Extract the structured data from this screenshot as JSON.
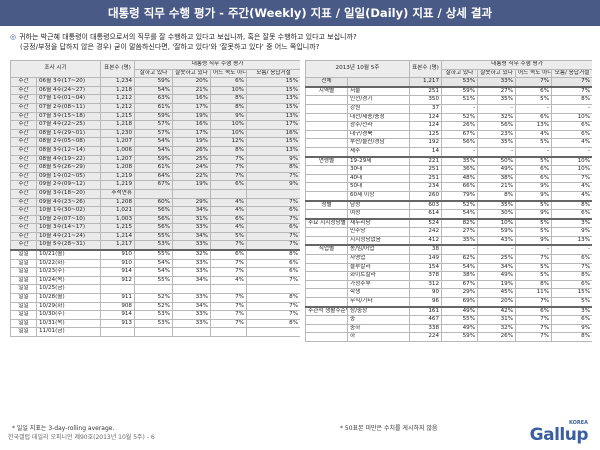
{
  "title": "대통령 직무 수행 평가 - 주간(Weekly) 지표 / 일일(Daily) 지표 / 상세 결과",
  "question": {
    "line1": "귀하는 박근혜 대통령이 대통령으로서의 직무를 잘 수행하고 있다고 보십니까, 혹은 잘못 수행하고 있다고 보십니까?",
    "line2": "(긍정/부정을 답하지 않은 경우) 굳이 말씀하신다면, '잘하고 있다'와 '잘못하고 있다' 중 어느 쪽입니까?"
  },
  "left": {
    "headers": {
      "period": "조사 시기",
      "base": "표본수 (명)",
      "group": "대통령 직무 수행 평가",
      "pos": "잘하고 있다",
      "neg": "잘못하고 있다",
      "mid": "어느 쪽도 아니다",
      "dk": "모름/ 응답거절"
    },
    "weekly": [
      [
        "주간",
        "06월 3주(17~20)",
        "1,234",
        "59%",
        "20%",
        "6%",
        "15%"
      ],
      [
        "주간",
        "06월 4주(24~27)",
        "1,218",
        "54%",
        "21%",
        "10%",
        "15%"
      ],
      [
        "주간",
        "07월 1주(01~04)",
        "1,212",
        "63%",
        "16%",
        "8%",
        "13%"
      ],
      [
        "주간",
        "07월 2주(08~11)",
        "1,212",
        "61%",
        "17%",
        "8%",
        "15%"
      ],
      [
        "주간",
        "07월 3주(15~18)",
        "1,215",
        "59%",
        "19%",
        "9%",
        "13%"
      ],
      [
        "주간",
        "07월 4주(22~25)",
        "1,218",
        "57%",
        "16%",
        "10%",
        "17%"
      ],
      [
        "주간",
        "08월 1주(29~01)",
        "1,230",
        "57%",
        "17%",
        "10%",
        "16%"
      ],
      [
        "주간",
        "08월 2주(05~08)",
        "1,207",
        "54%",
        "19%",
        "12%",
        "15%"
      ],
      [
        "주간",
        "08월 3주(12~14)",
        "1,006",
        "54%",
        "26%",
        "8%",
        "13%"
      ],
      [
        "주간",
        "08월 4주(19~22)",
        "1,207",
        "59%",
        "25%",
        "7%",
        "9%"
      ],
      [
        "주간",
        "08월 5주(26~29)",
        "1,208",
        "61%",
        "24%",
        "7%",
        "8%"
      ],
      [
        "주간",
        "09월 1주(02~05)",
        "1,219",
        "64%",
        "22%",
        "7%",
        "7%"
      ],
      [
        "주간",
        "09월 2주(09~12)",
        "1,219",
        "67%",
        "19%",
        "6%",
        "9%"
      ]
    ],
    "chuseok": [
      "주간",
      "09월 3주(18~20)",
      "추석연휴",
      "",
      "",
      "",
      ""
    ],
    "weekly2": [
      [
        "주간",
        "09월 4주(23~26)",
        "1,208",
        "60%",
        "29%",
        "4%",
        "7%"
      ],
      [
        "주간",
        "10월 1주(30~02)",
        "1,021",
        "56%",
        "34%",
        "4%",
        "6%"
      ],
      [
        "주간",
        "10월 2주(07~10)",
        "1,003",
        "56%",
        "31%",
        "6%",
        "7%"
      ],
      [
        "주간",
        "10월 3주(14~17)",
        "1,215",
        "56%",
        "33%",
        "4%",
        "6%"
      ],
      [
        "주간",
        "10월 4주(21~24)",
        "1,214",
        "55%",
        "34%",
        "5%",
        "7%"
      ],
      [
        "주간",
        "10월 5주(28~31)",
        "1,217",
        "53%",
        "33%",
        "7%",
        "7%"
      ]
    ],
    "daily": [
      [
        "일일",
        "10/21(월)",
        "910",
        "55%",
        "32%",
        "6%",
        "8%"
      ],
      [
        "일일",
        "10/22(화)",
        "910",
        "54%",
        "33%",
        "7%",
        "6%"
      ],
      [
        "일일",
        "10/23(수)",
        "914",
        "54%",
        "33%",
        "7%",
        "6%"
      ],
      [
        "일일",
        "10/24(목)",
        "912",
        "55%",
        "34%",
        "4%",
        "7%"
      ],
      [
        "일일",
        "10/25(금)",
        "",
        "",
        "",
        "",
        ""
      ],
      [
        "일일",
        "10/28(월)",
        "911",
        "52%",
        "33%",
        "7%",
        "8%"
      ],
      [
        "일일",
        "10/29(화)",
        "908",
        "52%",
        "34%",
        "7%",
        "7%"
      ],
      [
        "일일",
        "10/30(수)",
        "914",
        "53%",
        "33%",
        "7%",
        "7%"
      ],
      [
        "일일",
        "10/31(목)",
        "913",
        "53%",
        "33%",
        "7%",
        "8%"
      ],
      [
        "일일",
        "11/01(금)",
        "",
        "",
        "",
        "",
        ""
      ]
    ],
    "note": "* 일일 지표는 3-day-rolling average."
  },
  "right": {
    "headers": {
      "period": "2013년 10월 5주",
      "base": "표본수 (명)",
      "group": "대통령 직무 수행 평가",
      "pos": "잘하고 있다",
      "neg": "잘못하고 있다",
      "mid": "어느 쪽도 아니다",
      "dk": "모름/ 응답거절"
    },
    "total": [
      "전체",
      "",
      "1,217",
      "53%",
      "33%",
      "7%",
      "7%"
    ],
    "rows": [
      [
        "지역별",
        "서울",
        "251",
        "59%",
        "27%",
        "6%",
        "7%"
      ],
      [
        "",
        "인천/경기",
        "350",
        "51%",
        "35%",
        "5%",
        "8%"
      ],
      [
        "",
        "강원",
        "37",
        "-",
        "-",
        "-",
        "-"
      ],
      [
        "",
        "대전/세종/충청",
        "124",
        "52%",
        "32%",
        "6%",
        "10%"
      ],
      [
        "",
        "광주/전라",
        "124",
        "26%",
        "56%",
        "13%",
        "6%"
      ],
      [
        "",
        "대구/경북",
        "125",
        "67%",
        "23%",
        "4%",
        "6%"
      ],
      [
        "",
        "부산/울산/경남",
        "192",
        "56%",
        "35%",
        "5%",
        "4%"
      ],
      [
        "",
        "제주",
        "14",
        "-",
        "-",
        "-",
        "-"
      ],
      [
        "연령별",
        "19-29세",
        "221",
        "35%",
        "50%",
        "5%",
        "10%"
      ],
      [
        "",
        "30대",
        "251",
        "36%",
        "49%",
        "6%",
        "10%"
      ],
      [
        "",
        "40대",
        "251",
        "48%",
        "38%",
        "6%",
        "7%"
      ],
      [
        "",
        "50대",
        "234",
        "66%",
        "21%",
        "9%",
        "4%"
      ],
      [
        "",
        "60세 이상",
        "260",
        "79%",
        "8%",
        "9%",
        "4%"
      ],
      [
        "성별",
        "남성",
        "603",
        "52%",
        "35%",
        "5%",
        "8%"
      ],
      [
        "",
        "여성",
        "614",
        "54%",
        "30%",
        "9%",
        "6%"
      ],
      [
        "주요 지지정당별",
        "새누리당",
        "524",
        "82%",
        "10%",
        "5%",
        "3%"
      ],
      [
        "",
        "민주당",
        "242",
        "27%",
        "59%",
        "5%",
        "9%"
      ],
      [
        "",
        "지지정당없음",
        "412",
        "35%",
        "43%",
        "9%",
        "13%"
      ],
      [
        "직업별",
        "농/임/어업",
        "38",
        "-",
        "-",
        "-",
        "-"
      ],
      [
        "",
        "자영업",
        "149",
        "62%",
        "25%",
        "7%",
        "6%"
      ],
      [
        "",
        "블루칼라",
        "154",
        "54%",
        "34%",
        "5%",
        "7%"
      ],
      [
        "",
        "화이트칼라",
        "378",
        "38%",
        "49%",
        "5%",
        "8%"
      ],
      [
        "",
        "가정주부",
        "312",
        "67%",
        "19%",
        "8%",
        "6%"
      ],
      [
        "",
        "학생",
        "90",
        "29%",
        "45%",
        "11%",
        "15%"
      ],
      [
        "",
        "무직/기타",
        "96",
        "69%",
        "20%",
        "7%",
        "5%"
      ],
      [
        "주관적 생활수준별",
        "상/중상",
        "161",
        "49%",
        "42%",
        "6%",
        "3%"
      ],
      [
        "",
        "중",
        "467",
        "55%",
        "31%",
        "7%",
        "6%"
      ],
      [
        "",
        "중하",
        "338",
        "49%",
        "32%",
        "7%",
        "9%"
      ],
      [
        "",
        "하",
        "224",
        "59%",
        "26%",
        "7%",
        "8%"
      ]
    ],
    "note": "* 50표본 미만은 수치를 게시하지 않음"
  },
  "footer": "한국갤럽 데일리 오피니언 제90호(2013년 10월 5주) - 6",
  "logo": {
    "text": "Gallup",
    "sub": "KOREA"
  }
}
